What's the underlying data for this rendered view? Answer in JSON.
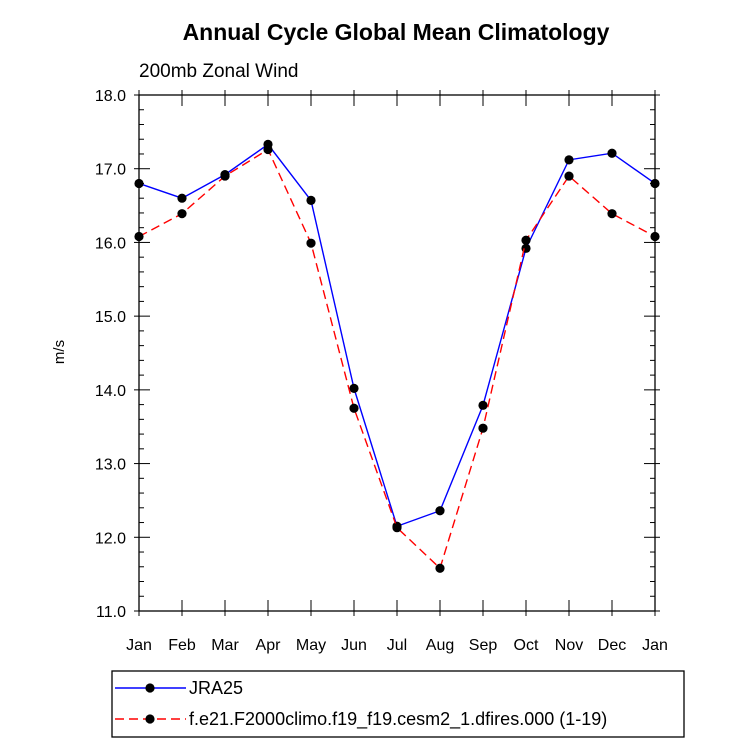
{
  "chart_data": {
    "type": "line",
    "title": "Annual Cycle Global Mean Climatology",
    "subtitle": "200mb Zonal Wind",
    "ylabel": "m/s",
    "xlabel": "",
    "categories": [
      "Jan",
      "Feb",
      "Mar",
      "Apr",
      "May",
      "Jun",
      "Jul",
      "Aug",
      "Sep",
      "Oct",
      "Nov",
      "Dec",
      "Jan"
    ],
    "ylim": [
      11.0,
      18.0
    ],
    "yticks": [
      "11.0",
      "12.0",
      "13.0",
      "14.0",
      "15.0",
      "16.0",
      "17.0",
      "18.0"
    ],
    "grid": false,
    "legend_position": "bottom",
    "series": [
      {
        "name": "JRA25",
        "color": "#0000ff",
        "dash": "solid",
        "marker": "circle",
        "values": [
          16.8,
          16.6,
          16.92,
          17.33,
          16.57,
          14.02,
          12.15,
          12.36,
          13.79,
          15.92,
          17.12,
          17.21,
          16.8
        ]
      },
      {
        "name": "f.e21.F2000climo.f19_f19.cesm2_1.dfires.000 (1-19)",
        "color": "#ff0000",
        "dash": "dashed",
        "marker": "circle",
        "values": [
          16.08,
          16.39,
          16.9,
          17.26,
          15.99,
          13.75,
          12.13,
          11.58,
          13.48,
          16.03,
          16.9,
          16.39,
          16.08
        ]
      }
    ]
  }
}
